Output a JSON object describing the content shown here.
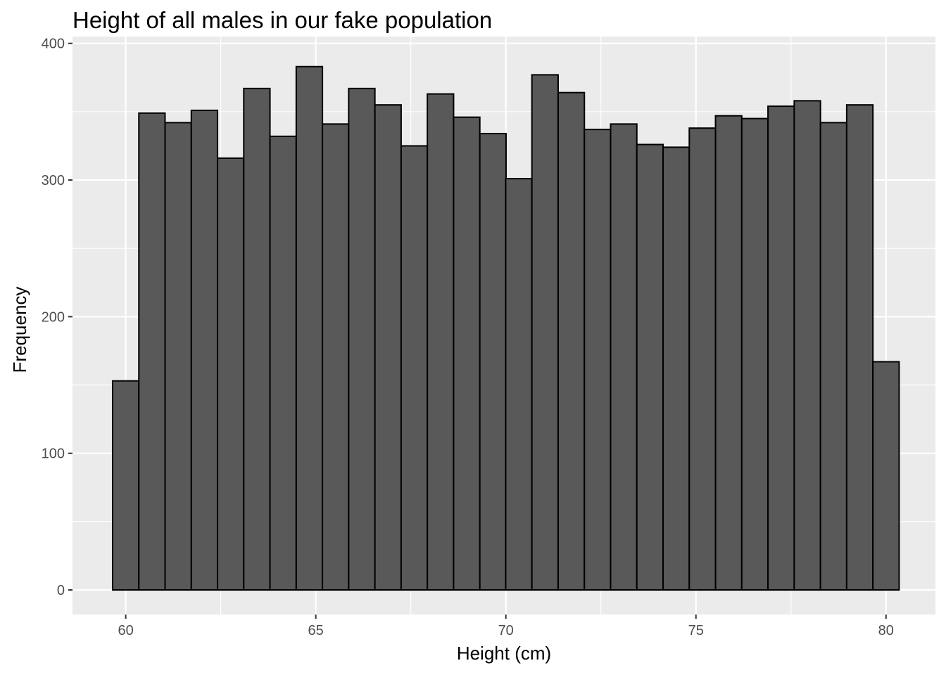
{
  "chart_data": {
    "type": "bar",
    "title": "Height of all males in our fake population",
    "xlabel": "Height (cm)",
    "ylabel": "Frequency",
    "xlim": [
      58.6,
      81.3
    ],
    "ylim": [
      -18,
      405
    ],
    "x_ticks": [
      60,
      65,
      70,
      75,
      80
    ],
    "x_tick_labels": [
      "60",
      "65",
      "70",
      "75",
      "80"
    ],
    "y_ticks": [
      0,
      100,
      200,
      300,
      400
    ],
    "y_tick_labels": [
      "0",
      "100",
      "200",
      "300",
      "400"
    ],
    "grid": true,
    "bin_width": 0.69,
    "bin_centers": [
      60.0,
      60.69,
      61.38,
      62.07,
      62.76,
      63.45,
      64.14,
      64.83,
      65.52,
      66.21,
      66.9,
      67.59,
      68.28,
      68.97,
      69.66,
      70.34,
      71.03,
      71.72,
      72.41,
      73.1,
      73.79,
      74.48,
      75.17,
      75.86,
      76.55,
      77.24,
      77.93,
      78.62,
      79.31,
      80.0
    ],
    "values": [
      153,
      349,
      342,
      351,
      316,
      367,
      332,
      383,
      341,
      367,
      355,
      325,
      363,
      346,
      334,
      301,
      377,
      364,
      337,
      341,
      326,
      324,
      338,
      347,
      345,
      354,
      358,
      342,
      355,
      167
    ],
    "colors": {
      "panel_background": "#ebebeb",
      "grid_major": "#ffffff",
      "bar_fill": "#595959",
      "bar_outline": "#000000",
      "tick_text": "#4d4d4d",
      "tick_mark": "#333333"
    }
  }
}
